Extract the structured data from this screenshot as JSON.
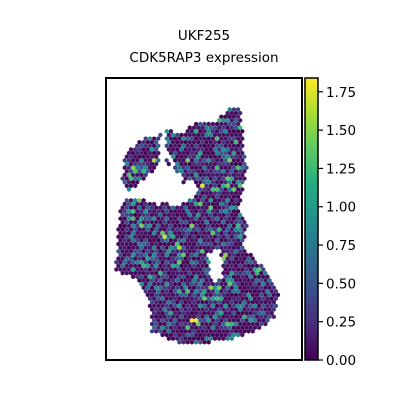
{
  "chart_data": {
    "type": "scatter",
    "title_line1": "UKF255",
    "title_line2": "CDK5RAP3 expression",
    "xlabel": "",
    "ylabel": "",
    "grid": false,
    "marker": "hexagon",
    "colormap": "viridis",
    "colorbar": {
      "range": [
        0.0,
        1.84
      ],
      "ticks": [
        0.0,
        0.25,
        0.5,
        0.75,
        1.0,
        1.25,
        1.5,
        1.75
      ],
      "tick_labels": [
        "0.00",
        "0.25",
        "0.50",
        "0.75",
        "1.00",
        "1.25",
        "1.50",
        "1.75"
      ]
    },
    "tissue_outline": [
      [
        0.63,
        0.11
      ],
      [
        0.69,
        0.11
      ],
      [
        0.7,
        0.24
      ],
      [
        0.72,
        0.33
      ],
      [
        0.7,
        0.4
      ],
      [
        0.68,
        0.46
      ],
      [
        0.72,
        0.52
      ],
      [
        0.7,
        0.6
      ],
      [
        0.76,
        0.64
      ],
      [
        0.82,
        0.68
      ],
      [
        0.88,
        0.77
      ],
      [
        0.86,
        0.85
      ],
      [
        0.76,
        0.9
      ],
      [
        0.62,
        0.93
      ],
      [
        0.4,
        0.95
      ],
      [
        0.23,
        0.9
      ],
      [
        0.22,
        0.78
      ],
      [
        0.16,
        0.72
      ],
      [
        0.05,
        0.68
      ],
      [
        0.06,
        0.54
      ],
      [
        0.08,
        0.44
      ],
      [
        0.15,
        0.42
      ],
      [
        0.27,
        0.45
      ],
      [
        0.36,
        0.42
      ],
      [
        0.4,
        0.36
      ],
      [
        0.36,
        0.33
      ],
      [
        0.3,
        0.3
      ],
      [
        0.31,
        0.18
      ],
      [
        0.38,
        0.2
      ],
      [
        0.46,
        0.15
      ],
      [
        0.54,
        0.16
      ]
    ],
    "tissue_upper_left_lobe": [
      [
        0.08,
        0.38
      ],
      [
        0.1,
        0.26
      ],
      [
        0.2,
        0.21
      ],
      [
        0.28,
        0.2
      ],
      [
        0.27,
        0.31
      ],
      [
        0.2,
        0.36
      ],
      [
        0.12,
        0.4
      ]
    ],
    "holes": [
      [
        [
          0.3,
          0.43
        ],
        [
          0.44,
          0.35
        ],
        [
          0.47,
          0.41
        ],
        [
          0.34,
          0.46
        ]
      ],
      [
        [
          0.52,
          0.62
        ],
        [
          0.58,
          0.6
        ],
        [
          0.6,
          0.7
        ],
        [
          0.54,
          0.73
        ]
      ],
      [
        [
          0.3,
          0.25
        ],
        [
          0.36,
          0.3
        ],
        [
          0.33,
          0.33
        ]
      ]
    ],
    "hot_spots": [
      {
        "x": 0.49,
        "y": 0.38,
        "value": 1.8
      },
      {
        "x": 0.3,
        "y": 0.56,
        "value": 1.7
      },
      {
        "x": 0.38,
        "y": 0.6,
        "value": 1.6
      },
      {
        "x": 0.45,
        "y": 0.86,
        "value": 1.8
      },
      {
        "x": 0.56,
        "y": 0.69,
        "value": 1.7
      },
      {
        "x": 0.6,
        "y": 0.63,
        "value": 1.5
      },
      {
        "x": 0.25,
        "y": 0.29,
        "value": 1.6
      },
      {
        "x": 0.53,
        "y": 0.46,
        "value": 1.4
      }
    ]
  }
}
